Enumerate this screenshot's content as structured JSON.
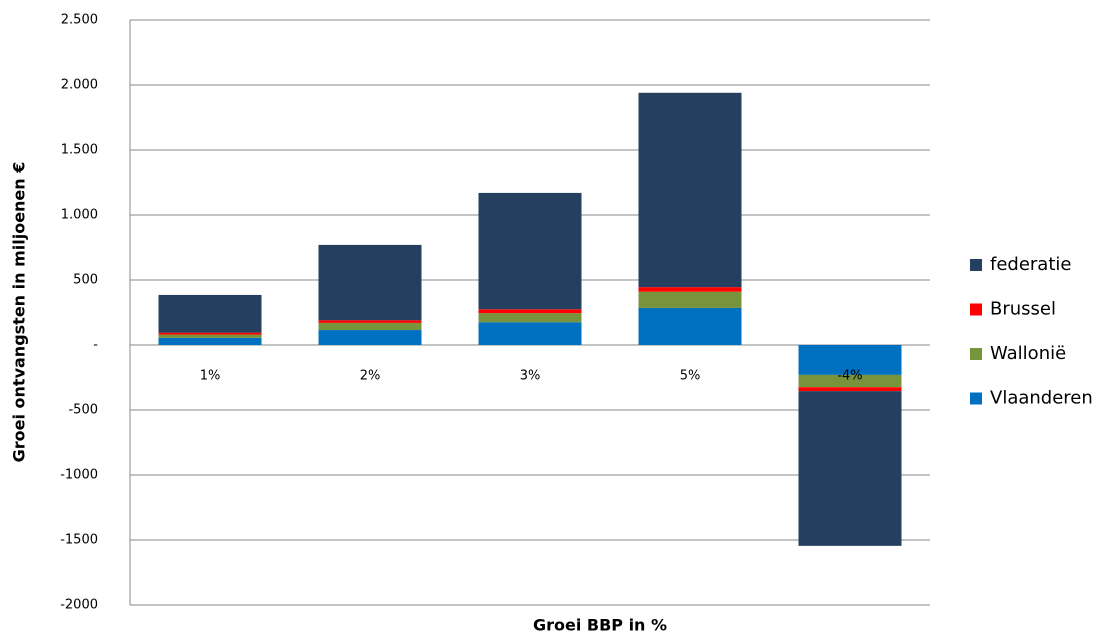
{
  "chart_data": {
    "type": "stacked-bar",
    "x_label": "Groei BBP in %",
    "y_label": "Groei ontvangsten in miljoenen €",
    "categories": [
      "1%",
      "2%",
      "3%",
      "5%",
      "-4%"
    ],
    "series": [
      {
        "name": "Vlaanderen",
        "color": "#0070c0",
        "values": [
          55,
          115,
          175,
          285,
          -230
        ]
      },
      {
        "name": "Wallonië",
        "color": "#77933c",
        "values": [
          25,
          55,
          70,
          125,
          -95
        ]
      },
      {
        "name": "Brussel",
        "color": "#ff0000",
        "values": [
          15,
          20,
          30,
          35,
          -30
        ]
      },
      {
        "name": "federatie",
        "color": "#243f60",
        "values": [
          290,
          580,
          895,
          1495,
          -1190
        ]
      }
    ],
    "ylim": [
      -2000,
      2500
    ],
    "yticks": [
      -2000,
      -1500,
      -1000,
      -500,
      {
        "value": 0,
        "label": "-"
      },
      500,
      {
        "value": 1000,
        "label": "1.000"
      },
      {
        "value": 1500,
        "label": "1.500"
      },
      {
        "value": 2000,
        "label": "2.000"
      },
      {
        "value": 2500,
        "label": "2.500"
      }
    ],
    "grid": true,
    "legend": "right"
  }
}
